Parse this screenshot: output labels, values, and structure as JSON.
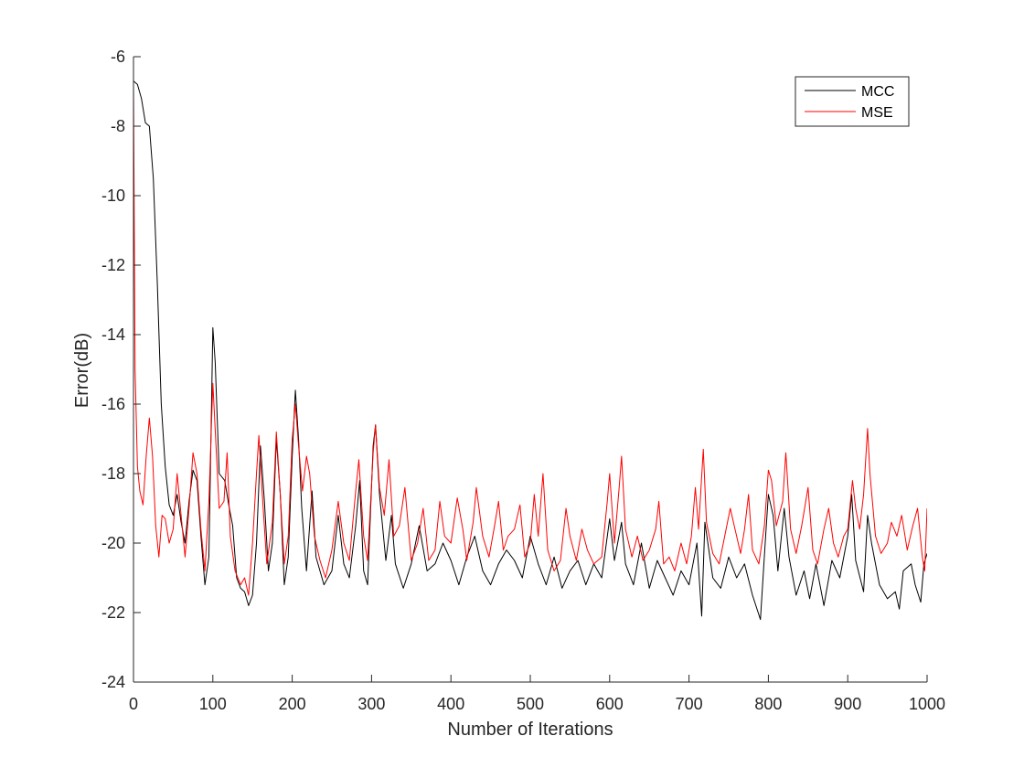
{
  "chart_data": {
    "type": "line",
    "title": "",
    "xlabel": "Number of Iterations",
    "ylabel": "Error(dB)",
    "xlim": [
      0,
      1000
    ],
    "ylim": [
      -24,
      -6
    ],
    "xticks": [
      0,
      100,
      200,
      300,
      400,
      500,
      600,
      700,
      800,
      900,
      1000
    ],
    "yticks": [
      -24,
      -22,
      -20,
      -18,
      -16,
      -14,
      -12,
      -10,
      -8,
      -6
    ],
    "grid": false,
    "legend_position": "top-right",
    "series": [
      {
        "name": "MCC",
        "color": "#000000",
        "points": [
          [
            0,
            -6.7
          ],
          [
            5,
            -6.8
          ],
          [
            10,
            -7.2
          ],
          [
            15,
            -7.9
          ],
          [
            20,
            -8.0
          ],
          [
            25,
            -9.5
          ],
          [
            30,
            -12.5
          ],
          [
            35,
            -16.0
          ],
          [
            40,
            -17.8
          ],
          [
            45,
            -18.9
          ],
          [
            50,
            -19.2
          ],
          [
            55,
            -18.6
          ],
          [
            60,
            -19.4
          ],
          [
            65,
            -20.0
          ],
          [
            70,
            -18.8
          ],
          [
            75,
            -17.9
          ],
          [
            80,
            -18.2
          ],
          [
            85,
            -19.8
          ],
          [
            90,
            -21.2
          ],
          [
            95,
            -20.4
          ],
          [
            98,
            -16.5
          ],
          [
            100,
            -13.8
          ],
          [
            103,
            -14.8
          ],
          [
            108,
            -18.0
          ],
          [
            115,
            -18.2
          ],
          [
            120,
            -18.9
          ],
          [
            125,
            -19.5
          ],
          [
            130,
            -21.0
          ],
          [
            135,
            -21.3
          ],
          [
            140,
            -21.4
          ],
          [
            145,
            -21.8
          ],
          [
            150,
            -21.5
          ],
          [
            155,
            -20.0
          ],
          [
            160,
            -17.2
          ],
          [
            165,
            -18.8
          ],
          [
            170,
            -20.8
          ],
          [
            175,
            -20.0
          ],
          [
            180,
            -17.0
          ],
          [
            185,
            -18.6
          ],
          [
            190,
            -21.2
          ],
          [
            195,
            -20.4
          ],
          [
            200,
            -17.5
          ],
          [
            204,
            -15.6
          ],
          [
            208,
            -17.0
          ],
          [
            212,
            -19.0
          ],
          [
            218,
            -20.8
          ],
          [
            225,
            -18.5
          ],
          [
            230,
            -20.4
          ],
          [
            240,
            -21.2
          ],
          [
            250,
            -20.8
          ],
          [
            258,
            -19.2
          ],
          [
            265,
            -20.6
          ],
          [
            272,
            -21.0
          ],
          [
            280,
            -19.5
          ],
          [
            285,
            -18.2
          ],
          [
            290,
            -20.8
          ],
          [
            295,
            -21.2
          ],
          [
            302,
            -17.2
          ],
          [
            305,
            -16.6
          ],
          [
            310,
            -18.6
          ],
          [
            318,
            -20.5
          ],
          [
            325,
            -19.2
          ],
          [
            330,
            -20.6
          ],
          [
            340,
            -21.3
          ],
          [
            350,
            -20.6
          ],
          [
            360,
            -19.5
          ],
          [
            370,
            -20.8
          ],
          [
            380,
            -20.6
          ],
          [
            390,
            -20.0
          ],
          [
            400,
            -20.5
          ],
          [
            410,
            -21.2
          ],
          [
            420,
            -20.4
          ],
          [
            430,
            -19.8
          ],
          [
            440,
            -20.8
          ],
          [
            450,
            -21.2
          ],
          [
            460,
            -20.6
          ],
          [
            470,
            -20.2
          ],
          [
            480,
            -20.5
          ],
          [
            490,
            -21.0
          ],
          [
            500,
            -19.8
          ],
          [
            510,
            -20.6
          ],
          [
            520,
            -21.2
          ],
          [
            530,
            -20.4
          ],
          [
            540,
            -21.3
          ],
          [
            550,
            -20.8
          ],
          [
            560,
            -20.5
          ],
          [
            570,
            -21.2
          ],
          [
            580,
            -20.6
          ],
          [
            590,
            -21.0
          ],
          [
            600,
            -19.3
          ],
          [
            606,
            -20.5
          ],
          [
            615,
            -19.4
          ],
          [
            620,
            -20.6
          ],
          [
            630,
            -21.2
          ],
          [
            640,
            -20.0
          ],
          [
            650,
            -21.3
          ],
          [
            660,
            -20.5
          ],
          [
            670,
            -21.0
          ],
          [
            680,
            -21.5
          ],
          [
            690,
            -20.8
          ],
          [
            700,
            -21.2
          ],
          [
            710,
            -20.0
          ],
          [
            716,
            -22.1
          ],
          [
            720,
            -19.4
          ],
          [
            730,
            -21.0
          ],
          [
            740,
            -21.3
          ],
          [
            750,
            -20.4
          ],
          [
            760,
            -21.0
          ],
          [
            770,
            -20.6
          ],
          [
            780,
            -21.5
          ],
          [
            790,
            -22.2
          ],
          [
            796,
            -20.0
          ],
          [
            800,
            -18.6
          ],
          [
            806,
            -19.2
          ],
          [
            812,
            -20.8
          ],
          [
            820,
            -19.0
          ],
          [
            826,
            -20.4
          ],
          [
            835,
            -21.5
          ],
          [
            845,
            -20.8
          ],
          [
            852,
            -21.6
          ],
          [
            860,
            -20.6
          ],
          [
            870,
            -21.8
          ],
          [
            880,
            -20.5
          ],
          [
            890,
            -21.0
          ],
          [
            900,
            -19.8
          ],
          [
            905,
            -18.6
          ],
          [
            910,
            -20.5
          ],
          [
            920,
            -21.4
          ],
          [
            925,
            -19.2
          ],
          [
            930,
            -20.0
          ],
          [
            940,
            -21.2
          ],
          [
            950,
            -21.6
          ],
          [
            960,
            -21.4
          ],
          [
            965,
            -21.9
          ],
          [
            970,
            -20.8
          ],
          [
            980,
            -20.6
          ],
          [
            985,
            -21.2
          ],
          [
            992,
            -21.7
          ],
          [
            996,
            -20.6
          ],
          [
            1000,
            -20.3
          ]
        ]
      },
      {
        "name": "MSE",
        "color": "#ff0000",
        "points": [
          [
            0,
            -6.8
          ],
          [
            2,
            -15.0
          ],
          [
            5,
            -17.8
          ],
          [
            8,
            -18.5
          ],
          [
            12,
            -18.9
          ],
          [
            16,
            -17.5
          ],
          [
            20,
            -16.4
          ],
          [
            24,
            -17.5
          ],
          [
            28,
            -19.5
          ],
          [
            32,
            -20.4
          ],
          [
            36,
            -19.2
          ],
          [
            40,
            -19.3
          ],
          [
            45,
            -20.0
          ],
          [
            50,
            -19.6
          ],
          [
            55,
            -18.0
          ],
          [
            60,
            -19.2
          ],
          [
            65,
            -20.4
          ],
          [
            70,
            -19.0
          ],
          [
            75,
            -17.4
          ],
          [
            80,
            -18.0
          ],
          [
            85,
            -19.6
          ],
          [
            90,
            -20.8
          ],
          [
            95,
            -18.8
          ],
          [
            100,
            -15.4
          ],
          [
            104,
            -17.2
          ],
          [
            108,
            -19.0
          ],
          [
            114,
            -18.8
          ],
          [
            118,
            -17.4
          ],
          [
            122,
            -19.8
          ],
          [
            128,
            -20.8
          ],
          [
            135,
            -21.2
          ],
          [
            140,
            -21.0
          ],
          [
            145,
            -21.5
          ],
          [
            150,
            -20.0
          ],
          [
            155,
            -18.0
          ],
          [
            158,
            -16.9
          ],
          [
            162,
            -18.5
          ],
          [
            168,
            -20.6
          ],
          [
            175,
            -19.4
          ],
          [
            180,
            -16.8
          ],
          [
            185,
            -18.6
          ],
          [
            190,
            -20.6
          ],
          [
            195,
            -19.8
          ],
          [
            200,
            -17.0
          ],
          [
            204,
            -16.0
          ],
          [
            208,
            -17.2
          ],
          [
            213,
            -18.5
          ],
          [
            218,
            -17.5
          ],
          [
            222,
            -18.0
          ],
          [
            228,
            -19.8
          ],
          [
            235,
            -20.5
          ],
          [
            242,
            -21.0
          ],
          [
            250,
            -20.2
          ],
          [
            258,
            -18.8
          ],
          [
            265,
            -20.0
          ],
          [
            272,
            -20.5
          ],
          [
            280,
            -18.5
          ],
          [
            284,
            -17.6
          ],
          [
            290,
            -19.8
          ],
          [
            295,
            -20.5
          ],
          [
            302,
            -17.4
          ],
          [
            305,
            -16.6
          ],
          [
            310,
            -18.4
          ],
          [
            316,
            -19.2
          ],
          [
            322,
            -17.6
          ],
          [
            328,
            -19.8
          ],
          [
            335,
            -19.5
          ],
          [
            342,
            -18.4
          ],
          [
            350,
            -20.5
          ],
          [
            358,
            -20.0
          ],
          [
            365,
            -19.0
          ],
          [
            372,
            -20.5
          ],
          [
            380,
            -20.2
          ],
          [
            386,
            -18.8
          ],
          [
            392,
            -19.8
          ],
          [
            400,
            -20.0
          ],
          [
            408,
            -18.7
          ],
          [
            415,
            -19.6
          ],
          [
            420,
            -20.5
          ],
          [
            428,
            -19.4
          ],
          [
            432,
            -18.4
          ],
          [
            440,
            -19.8
          ],
          [
            448,
            -20.4
          ],
          [
            455,
            -19.5
          ],
          [
            460,
            -18.8
          ],
          [
            466,
            -20.2
          ],
          [
            472,
            -19.8
          ],
          [
            480,
            -19.6
          ],
          [
            487,
            -18.9
          ],
          [
            493,
            -20.4
          ],
          [
            500,
            -20.0
          ],
          [
            505,
            -18.6
          ],
          [
            510,
            -19.8
          ],
          [
            516,
            -18.0
          ],
          [
            522,
            -20.2
          ],
          [
            530,
            -20.8
          ],
          [
            538,
            -20.5
          ],
          [
            545,
            -19.0
          ],
          [
            550,
            -19.8
          ],
          [
            558,
            -20.5
          ],
          [
            565,
            -19.6
          ],
          [
            572,
            -20.2
          ],
          [
            580,
            -20.6
          ],
          [
            590,
            -20.4
          ],
          [
            597,
            -18.8
          ],
          [
            600,
            -18.0
          ],
          [
            606,
            -20.0
          ],
          [
            612,
            -18.4
          ],
          [
            615,
            -17.5
          ],
          [
            620,
            -19.6
          ],
          [
            628,
            -20.4
          ],
          [
            635,
            -19.8
          ],
          [
            642,
            -20.5
          ],
          [
            650,
            -20.2
          ],
          [
            658,
            -19.6
          ],
          [
            662,
            -18.8
          ],
          [
            668,
            -20.6
          ],
          [
            675,
            -20.4
          ],
          [
            682,
            -20.8
          ],
          [
            690,
            -20.0
          ],
          [
            697,
            -20.6
          ],
          [
            703,
            -19.8
          ],
          [
            708,
            -18.4
          ],
          [
            712,
            -19.6
          ],
          [
            718,
            -17.3
          ],
          [
            722,
            -19.4
          ],
          [
            730,
            -20.3
          ],
          [
            738,
            -20.6
          ],
          [
            745,
            -19.8
          ],
          [
            752,
            -19.0
          ],
          [
            758,
            -19.6
          ],
          [
            765,
            -20.3
          ],
          [
            770,
            -19.6
          ],
          [
            775,
            -18.6
          ],
          [
            780,
            -20.2
          ],
          [
            788,
            -20.6
          ],
          [
            795,
            -19.5
          ],
          [
            800,
            -17.9
          ],
          [
            804,
            -18.2
          ],
          [
            810,
            -19.5
          ],
          [
            818,
            -18.8
          ],
          [
            822,
            -17.4
          ],
          [
            828,
            -19.6
          ],
          [
            835,
            -20.3
          ],
          [
            842,
            -19.5
          ],
          [
            850,
            -18.4
          ],
          [
            856,
            -20.2
          ],
          [
            862,
            -20.6
          ],
          [
            870,
            -19.6
          ],
          [
            876,
            -19.0
          ],
          [
            882,
            -20.0
          ],
          [
            888,
            -20.4
          ],
          [
            895,
            -19.8
          ],
          [
            900,
            -19.6
          ],
          [
            906,
            -18.2
          ],
          [
            910,
            -19.0
          ],
          [
            915,
            -19.6
          ],
          [
            920,
            -18.6
          ],
          [
            925,
            -16.7
          ],
          [
            928,
            -18.0
          ],
          [
            935,
            -19.8
          ],
          [
            942,
            -20.3
          ],
          [
            950,
            -20.0
          ],
          [
            955,
            -19.4
          ],
          [
            962,
            -19.8
          ],
          [
            968,
            -19.2
          ],
          [
            975,
            -20.2
          ],
          [
            982,
            -19.5
          ],
          [
            988,
            -19.0
          ],
          [
            994,
            -20.4
          ],
          [
            997,
            -20.8
          ],
          [
            1000,
            -19.0
          ]
        ]
      }
    ]
  }
}
